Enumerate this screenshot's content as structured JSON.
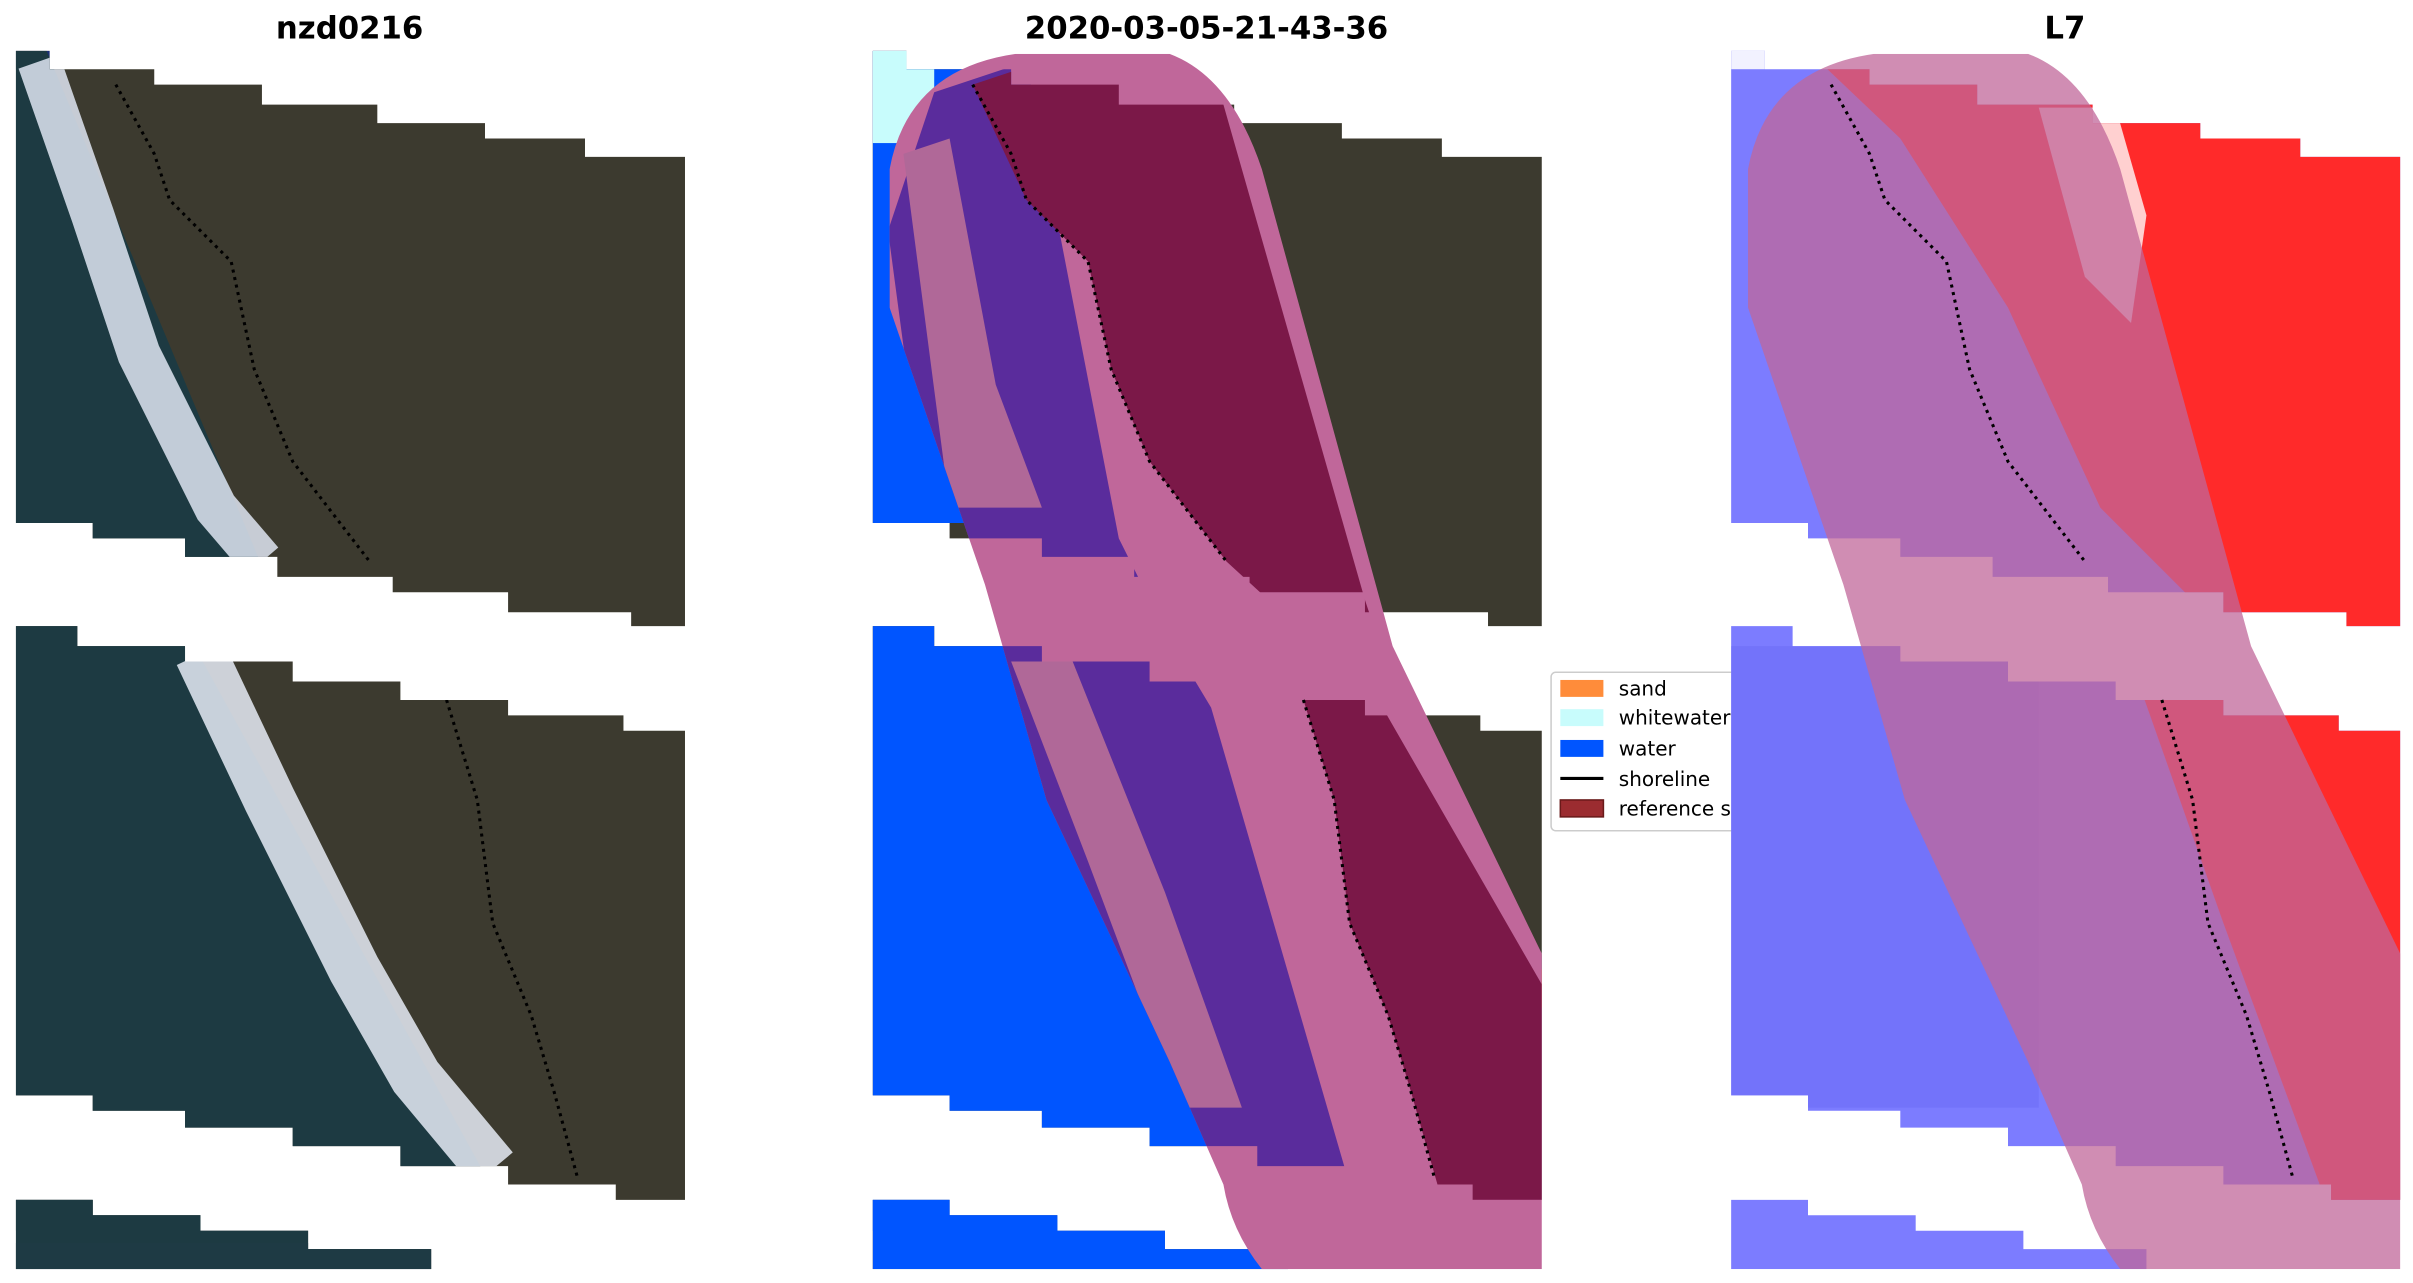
{
  "panels": [
    {
      "title": "nzd0216"
    },
    {
      "title": "2020-03-05-21-43-36"
    },
    {
      "title": "L7"
    }
  ],
  "legend": {
    "items": [
      {
        "label": "sand",
        "color": "#ff8c3a"
      },
      {
        "label": "whitewater",
        "color": "#c8fcfc"
      },
      {
        "label": "water",
        "color": "#0055ff"
      },
      {
        "label": "shoreline",
        "color": "#000000"
      },
      {
        "label": "reference s",
        "color": "#9b2c30"
      }
    ]
  },
  "colors": {
    "land": "#3c3a2f",
    "sea_rgb": "#1d3a42",
    "overlay_band": "#c0679a",
    "class_purple": "#5a2c9c",
    "class_reference": "#7b1848",
    "index_blue": "#7c7cff",
    "index_red": "#ff2424"
  }
}
